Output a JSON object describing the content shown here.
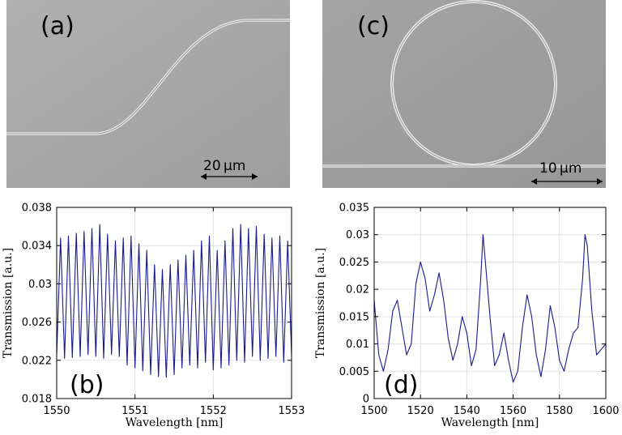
{
  "figure": {
    "panel_a": {
      "label": "(a)",
      "scale_text": "20 μm"
    },
    "panel_c": {
      "label": "(c)",
      "scale_text": "10 μm"
    }
  },
  "colors": {
    "sem_bg": "#a9a9a9",
    "line": "#1a1a8c",
    "waveguide": "#e6e6e6"
  },
  "chart_data": [
    {
      "id": "b",
      "type": "line",
      "panel_label": "(b)",
      "xlabel": "Wavelength [nm]",
      "ylabel": "Transmission [a.u.]",
      "xlim": [
        1550,
        1553
      ],
      "ylim": [
        0.018,
        0.038
      ],
      "xticks": [
        1550,
        1551,
        1552,
        1553
      ],
      "xtick_labels": [
        "1550",
        "1551",
        "1552",
        "1553"
      ],
      "yticks": [
        0.018,
        0.022,
        0.026,
        0.03,
        0.034,
        0.038
      ],
      "ytick_labels": [
        "0.018",
        "0.022",
        "0.026",
        "0.03",
        "0.034",
        "0.038"
      ],
      "grid": true,
      "series": [
        {
          "name": "transmission",
          "x": [
            1550.0,
            1550.05,
            1550.1,
            1550.15,
            1550.2,
            1550.25,
            1550.3,
            1550.35,
            1550.4,
            1550.45,
            1550.5,
            1550.55,
            1550.6,
            1550.65,
            1550.7,
            1550.75,
            1550.8,
            1550.85,
            1550.9,
            1550.95,
            1551.0,
            1551.05,
            1551.1,
            1551.15,
            1551.2,
            1551.25,
            1551.3,
            1551.35,
            1551.4,
            1551.45,
            1551.5,
            1551.55,
            1551.6,
            1551.65,
            1551.7,
            1551.75,
            1551.8,
            1551.85,
            1551.9,
            1551.95,
            1552.0,
            1552.05,
            1552.1,
            1552.15,
            1552.2,
            1552.25,
            1552.3,
            1552.35,
            1552.4,
            1552.45,
            1552.5,
            1552.55,
            1552.6,
            1552.65,
            1552.7,
            1552.75,
            1552.8,
            1552.85,
            1552.9,
            1552.95,
            1553.0
          ],
          "y": [
            0.0225,
            0.0348,
            0.0222,
            0.035,
            0.0223,
            0.0353,
            0.0224,
            0.0355,
            0.0226,
            0.0358,
            0.0224,
            0.0362,
            0.0222,
            0.0352,
            0.0226,
            0.0345,
            0.0224,
            0.0348,
            0.0215,
            0.035,
            0.0212,
            0.0342,
            0.0209,
            0.0335,
            0.0205,
            0.032,
            0.0203,
            0.0315,
            0.0202,
            0.032,
            0.0205,
            0.0325,
            0.0212,
            0.033,
            0.0215,
            0.0335,
            0.0212,
            0.0345,
            0.0218,
            0.035,
            0.021,
            0.0335,
            0.0212,
            0.0345,
            0.0215,
            0.0358,
            0.022,
            0.0362,
            0.0218,
            0.0358,
            0.0224,
            0.036,
            0.022,
            0.0352,
            0.0222,
            0.0348,
            0.0224,
            0.035,
            0.0218,
            0.0345,
            0.0225
          ]
        }
      ]
    },
    {
      "id": "d",
      "type": "line",
      "panel_label": "(d)",
      "xlabel": "Wavelength [nm]",
      "ylabel": "Transmission [a.u.]",
      "xlim": [
        1500,
        1600
      ],
      "ylim": [
        0,
        0.035
      ],
      "xticks": [
        1500,
        1520,
        1540,
        1560,
        1580,
        1600
      ],
      "xtick_labels": [
        "1500",
        "1520",
        "1540",
        "1560",
        "1580",
        "1600"
      ],
      "yticks": [
        0,
        0.005,
        0.01,
        0.015,
        0.02,
        0.025,
        0.03,
        0.035
      ],
      "ytick_labels": [
        "0",
        "0.005",
        "0.01",
        "0.015",
        "0.02",
        "0.025",
        "0.03",
        "0.035"
      ],
      "grid": true,
      "series": [
        {
          "name": "transmission",
          "x": [
            1500,
            1502,
            1504,
            1506,
            1508,
            1510,
            1512,
            1514,
            1516,
            1518,
            1520,
            1522,
            1524,
            1526,
            1528,
            1530,
            1532,
            1534,
            1536,
            1538,
            1540,
            1542,
            1544,
            1546,
            1547,
            1548,
            1550,
            1552,
            1554,
            1556,
            1558,
            1560,
            1562,
            1564,
            1566,
            1568,
            1570,
            1572,
            1574,
            1576,
            1578,
            1580,
            1582,
            1584,
            1586,
            1588,
            1590,
            1591,
            1592,
            1594,
            1596,
            1598,
            1600
          ],
          "y": [
            0.018,
            0.008,
            0.005,
            0.009,
            0.016,
            0.018,
            0.013,
            0.008,
            0.01,
            0.021,
            0.025,
            0.022,
            0.016,
            0.019,
            0.023,
            0.018,
            0.011,
            0.007,
            0.01,
            0.015,
            0.012,
            0.006,
            0.009,
            0.022,
            0.03,
            0.025,
            0.015,
            0.006,
            0.008,
            0.012,
            0.007,
            0.003,
            0.005,
            0.013,
            0.019,
            0.015,
            0.008,
            0.004,
            0.009,
            0.017,
            0.013,
            0.007,
            0.005,
            0.009,
            0.012,
            0.013,
            0.022,
            0.03,
            0.028,
            0.016,
            0.008,
            0.009,
            0.01
          ]
        }
      ]
    }
  ]
}
